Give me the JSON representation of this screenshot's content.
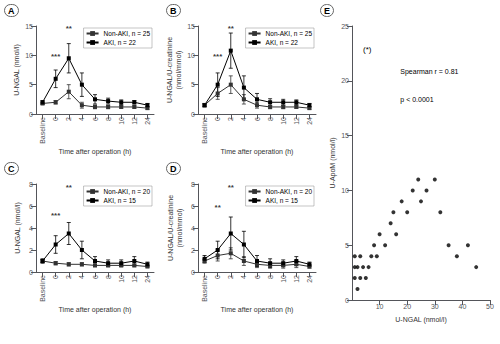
{
  "chart_data": [
    {
      "type": "line",
      "title": "A",
      "xlabel": "Time after operation (h)",
      "ylabel": "U-NGAL (nmol/l)",
      "categories": [
        "Baseline",
        "0",
        "2",
        "4",
        "6",
        "8",
        "10",
        "12",
        "24"
      ],
      "series": [
        {
          "name": "Non-AKI, n = 25",
          "color": "#333333",
          "marker": "square",
          "values": [
            1.8,
            2.0,
            3.8,
            1.5,
            1.2,
            1.2,
            1.2,
            1.2,
            1.0
          ],
          "errors": [
            0.2,
            0.3,
            1.2,
            0.5,
            0.3,
            0.3,
            0.2,
            0.2,
            0.2
          ]
        },
        {
          "name": "AKI, n = 22",
          "color": "#000000",
          "marker": "square",
          "values": [
            2.0,
            6.0,
            9.5,
            5.0,
            2.5,
            2.2,
            2.0,
            2.0,
            1.5
          ],
          "errors": [
            0.3,
            1.5,
            2.5,
            2.0,
            0.8,
            0.5,
            0.4,
            0.3,
            0.3
          ]
        }
      ],
      "ylim": [
        0,
        15
      ],
      "yticks": [
        0,
        5,
        10,
        15
      ],
      "grid": false,
      "legend": "upper right",
      "annotations": [
        {
          "text": "***",
          "x": "0",
          "y": 9
        },
        {
          "text": "**",
          "x": "2",
          "y": 13.8
        }
      ]
    },
    {
      "type": "line",
      "title": "B",
      "xlabel": "Time after operation (h)",
      "ylabel": "U-NGAL/U-creatinine\n(nmol/mmol)",
      "categories": [
        "Baseline",
        "0",
        "2",
        "4",
        "6",
        "8",
        "10",
        "12",
        "24"
      ],
      "series": [
        {
          "name": "Non-AKI, n = 25",
          "color": "#333333",
          "marker": "square",
          "values": [
            1.5,
            3.5,
            5.0,
            2.5,
            1.5,
            1.2,
            1.2,
            1.2,
            1.0
          ],
          "errors": [
            0.2,
            1.0,
            1.5,
            0.8,
            0.5,
            0.3,
            0.3,
            0.2,
            0.2
          ]
        },
        {
          "name": "AKI, n = 22",
          "color": "#000000",
          "marker": "square",
          "values": [
            1.5,
            5.0,
            10.8,
            4.5,
            2.5,
            2.0,
            2.0,
            2.0,
            1.5
          ],
          "errors": [
            0.3,
            2.0,
            3.0,
            2.0,
            1.0,
            0.6,
            0.5,
            0.4,
            0.3
          ]
        }
      ],
      "ylim": [
        0,
        15
      ],
      "yticks": [
        0,
        5,
        10,
        15
      ],
      "grid": false,
      "legend": "upper right",
      "annotations": [
        {
          "text": "***",
          "x": "0",
          "y": 9
        },
        {
          "text": "**",
          "x": "2",
          "y": 13.8
        }
      ]
    },
    {
      "type": "line",
      "title": "C",
      "xlabel": "Time after operation (h)",
      "ylabel": "U-NGAL (nmol/l)",
      "categories": [
        "Baseline",
        "0",
        "2",
        "4",
        "6",
        "8",
        "10",
        "12",
        "24"
      ],
      "series": [
        {
          "name": "Non-AKI, n = 20",
          "color": "#333333",
          "marker": "square",
          "values": [
            1.0,
            0.8,
            0.7,
            0.7,
            0.6,
            0.6,
            0.6,
            0.6,
            0.5
          ],
          "errors": [
            0.15,
            0.15,
            0.15,
            0.15,
            0.12,
            0.12,
            0.12,
            0.12,
            0.1
          ]
        },
        {
          "name": "AKI, n = 15",
          "color": "#000000",
          "marker": "square",
          "values": [
            1.0,
            2.5,
            3.5,
            2.0,
            1.0,
            0.8,
            0.8,
            1.0,
            0.7
          ],
          "errors": [
            0.2,
            0.8,
            1.0,
            0.8,
            0.4,
            0.3,
            0.3,
            0.4,
            0.2
          ]
        }
      ],
      "ylim": [
        0,
        8
      ],
      "yticks": [
        0,
        2,
        4,
        6,
        8
      ],
      "grid": false,
      "legend": "upper right",
      "annotations": [
        {
          "text": "***",
          "x": "0",
          "y": 4.64
        },
        {
          "text": "**",
          "x": "2",
          "y": 7.2
        }
      ]
    },
    {
      "type": "line",
      "title": "D",
      "xlabel": "Time after operation (h)",
      "ylabel": "U-NGAL/U-creatinine\n(nmol/mmol)",
      "categories": [
        "Baseline",
        "0",
        "2",
        "4",
        "6",
        "8",
        "10",
        "12",
        "24"
      ],
      "series": [
        {
          "name": "Non-AKI, n = 20",
          "color": "#333333",
          "marker": "square",
          "values": [
            1.0,
            1.5,
            1.7,
            1.0,
            0.7,
            0.6,
            0.6,
            0.7,
            0.5
          ],
          "errors": [
            0.2,
            0.5,
            0.5,
            0.4,
            0.3,
            0.25,
            0.25,
            0.3,
            0.15
          ]
        },
        {
          "name": "AKI, n = 15",
          "color": "#000000",
          "marker": "square",
          "values": [
            1.2,
            2.0,
            3.5,
            2.5,
            1.0,
            0.8,
            0.8,
            1.0,
            0.7
          ],
          "errors": [
            0.3,
            0.8,
            1.5,
            1.2,
            0.5,
            0.4,
            0.3,
            0.4,
            0.2
          ]
        }
      ],
      "ylim": [
        0,
        8
      ],
      "yticks": [
        0,
        2,
        4,
        6,
        8
      ],
      "grid": false,
      "legend": "upper right",
      "annotations": [
        {
          "text": "**",
          "x": "0",
          "y": 5.44
        },
        {
          "text": "**",
          "x": "2",
          "y": 7.2
        }
      ]
    },
    {
      "type": "scatter",
      "title": "E",
      "xlabel": "U-NGAL (nmol/l)",
      "ylabel": "U-ApoM (nmol/l)",
      "x": [
        1,
        1,
        1,
        2,
        2,
        3,
        3,
        4,
        5,
        6,
        7,
        8,
        9,
        10,
        12,
        14,
        15,
        16,
        18,
        20,
        22,
        24,
        25,
        27,
        30,
        32,
        35,
        38,
        42,
        45
      ],
      "values": [
        2,
        3,
        4,
        1,
        3,
        2,
        4,
        3,
        2,
        3,
        4,
        5,
        4,
        6,
        5,
        7,
        8,
        6,
        9,
        8,
        10,
        11,
        9,
        10,
        11,
        8,
        5,
        4,
        5,
        3
      ],
      "color": "#000000",
      "xlim": [
        0,
        50
      ],
      "ylim": [
        0,
        25
      ],
      "xticks": [
        10,
        20,
        30,
        40,
        50
      ],
      "yticks": [
        0,
        5,
        10,
        15,
        20,
        25
      ],
      "grid": false,
      "annotations": [
        {
          "text": "(*)"
        },
        {
          "text": "Spearman r = 0.81"
        },
        {
          "text": "p < 0.0001"
        }
      ]
    }
  ]
}
